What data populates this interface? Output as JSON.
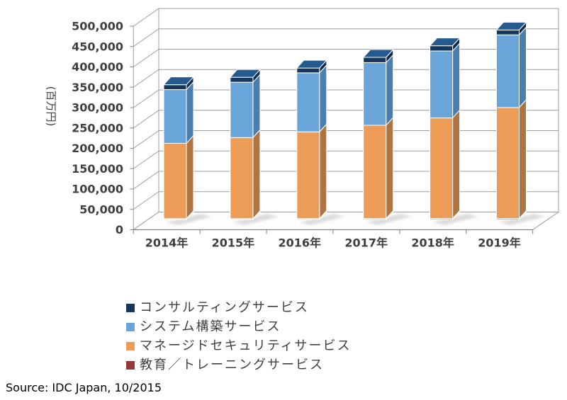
{
  "figure": {
    "background": "#ffffff",
    "source_text": "Source: IDC Japan, 10/2015"
  },
  "chart_data": {
    "type": "bar",
    "stacked": true,
    "projection": "3d",
    "title": "",
    "xlabel": "",
    "ylabel": "(百万円)",
    "ylim": [
      0,
      500000
    ],
    "ytick_step": 50000,
    "grid": true,
    "legend_position": "bottom",
    "categories": [
      "2014年",
      "2015年",
      "2016年",
      "2017年",
      "2018年",
      "2019年"
    ],
    "series": [
      {
        "name": "教育／トレーニングサービス",
        "color": "#953735",
        "side": "#6E2826",
        "top": "#B05450",
        "values": [
          2000,
          2100,
          2200,
          2300,
          2400,
          2500
        ]
      },
      {
        "name": "マネージドセキュリティサービス",
        "color": "#EC9C56",
        "side": "#B07440",
        "top": "#F4B06A",
        "values": [
          185000,
          199000,
          213000,
          229000,
          247000,
          272500
        ]
      },
      {
        "name": "システム構築サービス",
        "color": "#69A5D9",
        "side": "#4A7EAE",
        "top": "#8FBCE4",
        "values": [
          132000,
          136000,
          145000,
          154000,
          164500,
          178500
        ]
      },
      {
        "name": "コンサルティングサービス",
        "color": "#17375E",
        "side": "#102A49",
        "top": "#245A8E",
        "values": [
          12000,
          12200,
          11800,
          13000,
          12800,
          12000
        ]
      }
    ],
    "totals": [
      331000,
      349300,
      372000,
      398300,
      426700,
      465500
    ],
    "y_tick_labels": [
      "500,000",
      "450,000",
      "400,000",
      "350,000",
      "300,000",
      "250,000",
      "200,000",
      "150,000",
      "100,000",
      "50,000",
      "0"
    ]
  },
  "legend": {
    "items": [
      {
        "label": "コンサルティングサービス",
        "color": "#17375E"
      },
      {
        "label": "システム構築サービス",
        "color": "#69A5D9"
      },
      {
        "label": "マネージドセキュリティサービス",
        "color": "#EC9C56"
      },
      {
        "label": "教育／トレーニングサービス",
        "color": "#953735"
      }
    ]
  }
}
